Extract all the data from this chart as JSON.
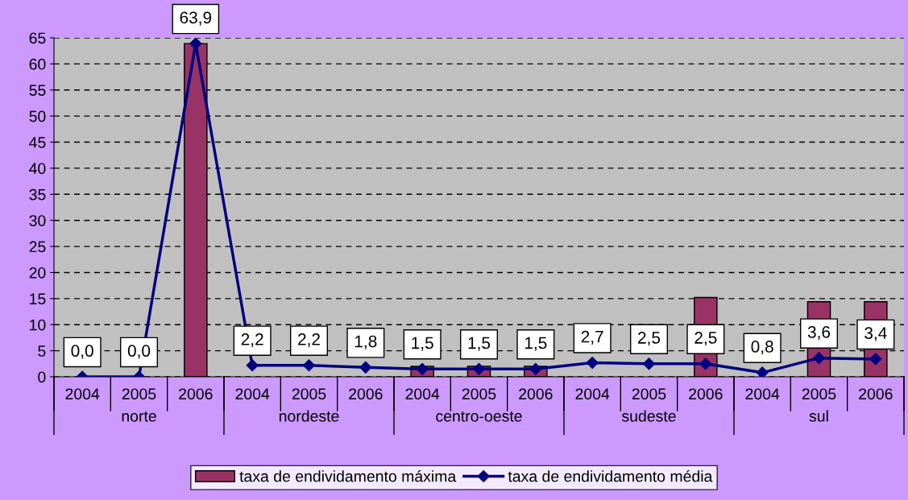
{
  "chart_data": {
    "type": "bar",
    "categories": [
      "2004",
      "2005",
      "2006",
      "2004",
      "2005",
      "2006",
      "2004",
      "2005",
      "2006",
      "2004",
      "2005",
      "2006",
      "2004",
      "2005",
      "2006"
    ],
    "annotations": [
      "norte",
      "nordeste",
      "centro-oeste",
      "sudeste",
      "sul"
    ],
    "series": [
      {
        "name": "taxa de endividamento máxima",
        "color": "#993366",
        "values": [
          0,
          0,
          63.9,
          null,
          null,
          null,
          2.0,
          2.0,
          2.0,
          null,
          null,
          15.2,
          null,
          14.4,
          14.4
        ]
      },
      {
        "name": "taxa de endividamento média",
        "type": "line",
        "color": "#000080",
        "marker": "diamond",
        "values": [
          0.0,
          0.0,
          63.9,
          2.2,
          2.2,
          1.8,
          1.5,
          1.5,
          1.5,
          2.7,
          2.5,
          2.5,
          0.8,
          3.6,
          3.4
        ],
        "value_labels": [
          "0,0",
          "0,0",
          "63,9",
          "2,2",
          "2,2",
          "1,8",
          "1,5",
          "1,5",
          "1,5",
          "2,7",
          "2,5",
          "2,5",
          "0,8",
          "3,6",
          "3,4"
        ]
      }
    ],
    "ylim": [
      0,
      65
    ],
    "yticks": [
      0,
      5,
      10,
      15,
      20,
      25,
      30,
      35,
      40,
      45,
      50,
      55,
      60,
      65
    ],
    "grid": "y",
    "legend": "bottom"
  }
}
